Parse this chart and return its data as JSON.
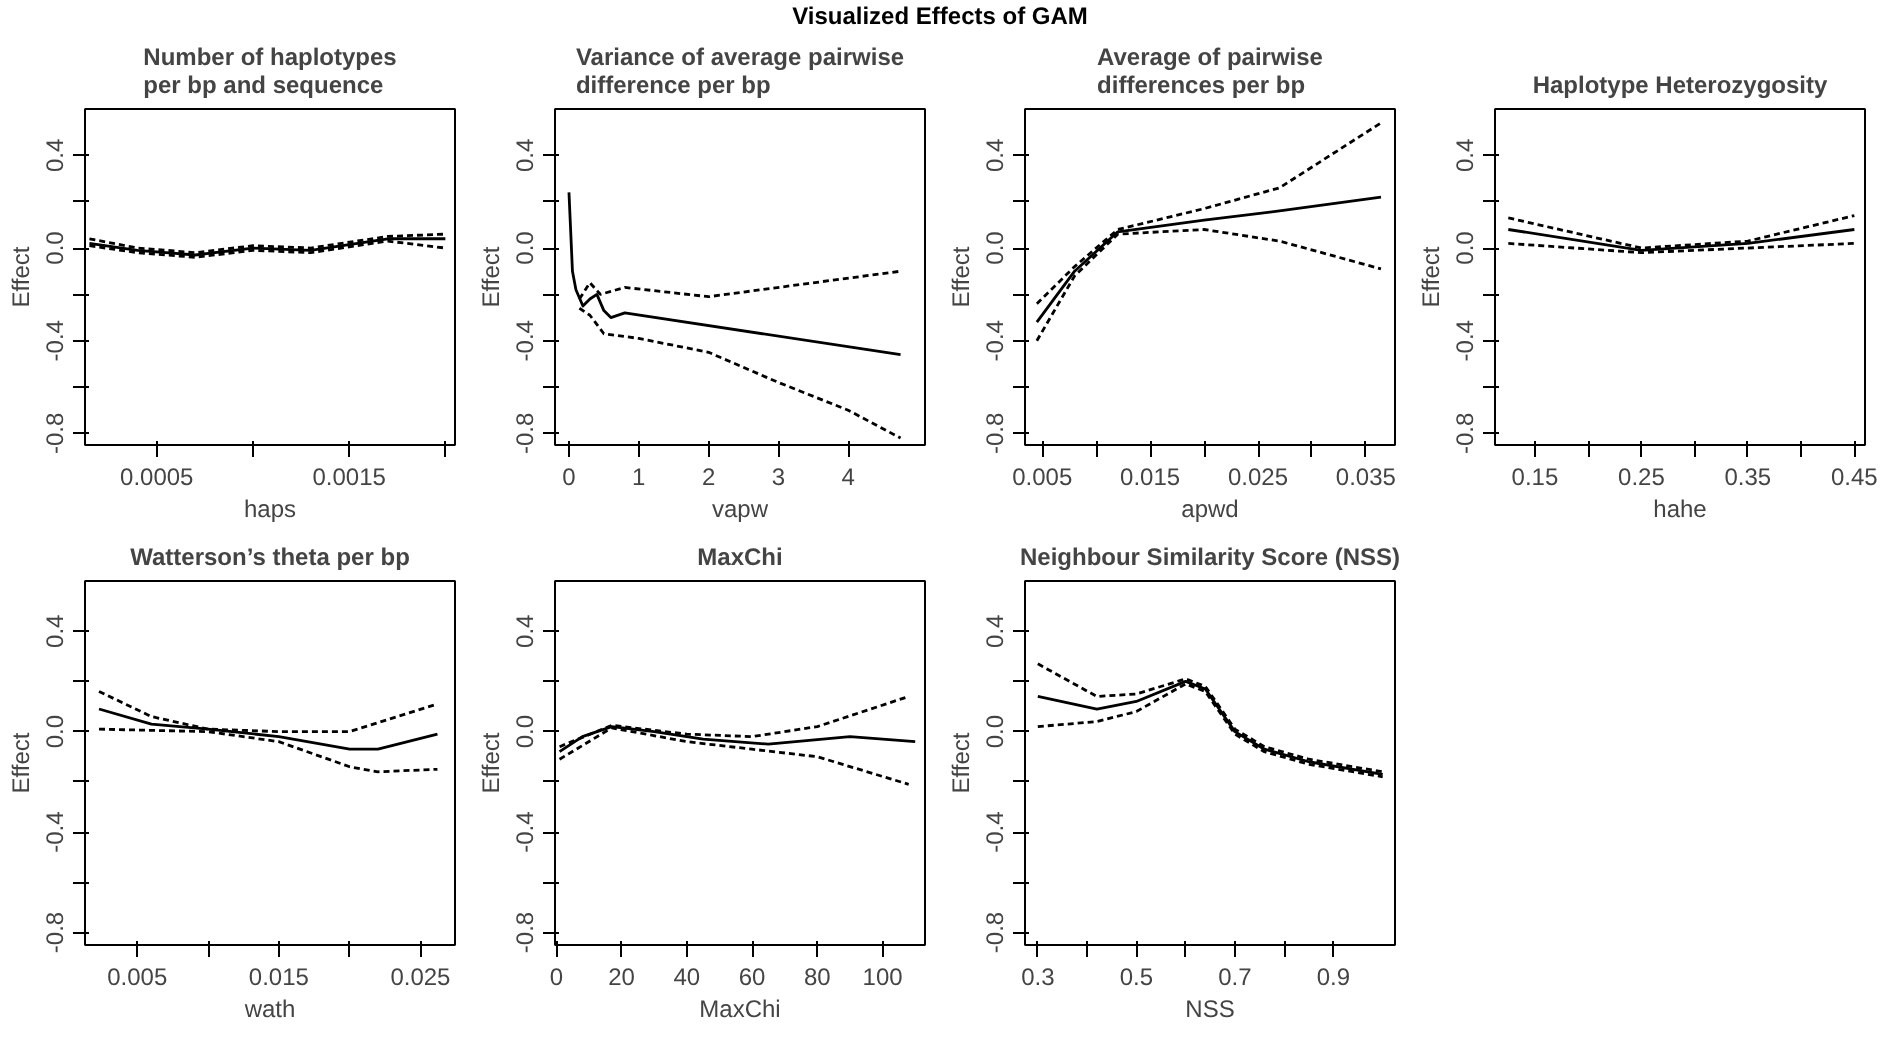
{
  "chart_data": [
    {
      "type": "line",
      "title": "Number of haplotypes\nper bp and sequence",
      "xlabel": "haps",
      "ylabel": "Effect",
      "annotations": [
        "Visualized Effects of GAM"
      ],
      "xlim": [
        0.000127,
        0.00205
      ],
      "xticks": [
        0.0005,
        {
          "value": 0.001,
          "label": null
        },
        0.0015,
        {
          "value": 0.002,
          "label": null
        }
      ],
      "ylim": [
        -0.85,
        0.6
      ],
      "yticks": [
        -0.8,
        {
          "value": -0.6,
          "label": null
        },
        -0.4,
        {
          "value": -0.2,
          "label": null
        },
        {
          "value": 0,
          "label": "0.0"
        },
        {
          "value": 0.2,
          "label": null
        },
        0.4
      ],
      "series": [
        {
          "x": [
            0.00015,
            0.0004,
            0.0007,
            0.001,
            0.0013,
            0.0017,
            0.002
          ],
          "values": [
            0.02,
            -0.01,
            -0.03,
            0.0,
            -0.01,
            0.04,
            0.04
          ],
          "color": "#000000",
          "line_style": "solid"
        },
        {
          "x": [
            0.00015,
            0.0004,
            0.0007,
            0.001,
            0.0013,
            0.0017,
            0.002
          ],
          "values": [
            0.04,
            0.0,
            -0.02,
            0.01,
            0.0,
            0.05,
            0.06
          ],
          "color": "#000000",
          "line_style": "dashed"
        },
        {
          "x": [
            0.00015,
            0.0004,
            0.0007,
            0.001,
            0.0013,
            0.0017,
            0.002
          ],
          "values": [
            0.01,
            -0.02,
            -0.04,
            -0.01,
            -0.02,
            0.03,
            0.0
          ],
          "color": "#000000",
          "line_style": "dashed"
        }
      ]
    },
    {
      "type": "line",
      "title": "Variance of average pairwise\ndifference per bp",
      "xlabel": "vapw",
      "ylabel": "Effect",
      "xlim": [
        -0.2,
        5.1
      ],
      "xticks": [
        0,
        1,
        2,
        3,
        4
      ],
      "ylim": [
        -0.85,
        0.6
      ],
      "yticks": [
        -0.8,
        {
          "value": -0.6,
          "label": null
        },
        -0.4,
        {
          "value": -0.2,
          "label": null
        },
        {
          "value": 0,
          "label": "0.0"
        },
        {
          "value": 0.2,
          "label": null
        },
        0.4
      ],
      "series": [
        {
          "x": [
            0,
            0.05,
            0.1,
            0.2,
            0.3,
            0.4,
            0.5,
            0.6,
            0.8,
            4.75
          ],
          "values": [
            0.24,
            -0.1,
            -0.18,
            -0.25,
            -0.22,
            -0.2,
            -0.27,
            -0.3,
            -0.28,
            -0.46
          ],
          "color": "#000000",
          "line_style": "solid"
        },
        {
          "x": [
            0.15,
            0.3,
            0.45,
            0.8,
            2,
            4.75
          ],
          "values": [
            -0.22,
            -0.15,
            -0.2,
            -0.17,
            -0.21,
            -0.1
          ],
          "color": "#000000",
          "line_style": "dashed"
        },
        {
          "x": [
            0.15,
            0.3,
            0.5,
            1,
            2,
            3,
            4,
            4.75
          ],
          "values": [
            -0.26,
            -0.29,
            -0.37,
            -0.39,
            -0.45,
            -0.58,
            -0.7,
            -0.82
          ],
          "color": "#000000",
          "line_style": "dashed"
        }
      ]
    },
    {
      "type": "line",
      "title": "Average of pairwise\ndifferences per bp",
      "xlabel": "apwd",
      "ylabel": "Effect",
      "xlim": [
        0.0034,
        0.0377
      ],
      "xticks": [
        0.005,
        {
          "value": 0.01,
          "label": null
        },
        0.015,
        {
          "value": 0.02,
          "label": null
        },
        0.025,
        {
          "value": 0.03,
          "label": null
        },
        0.035
      ],
      "ylim": [
        -0.85,
        0.6
      ],
      "yticks": [
        -0.8,
        {
          "value": -0.6,
          "label": null
        },
        -0.4,
        {
          "value": -0.2,
          "label": null
        },
        {
          "value": 0,
          "label": "0.0"
        },
        {
          "value": 0.2,
          "label": null
        },
        0.4
      ],
      "series": [
        {
          "x": [
            0.0045,
            0.008,
            0.012,
            0.02,
            0.027,
            0.0364
          ],
          "values": [
            -0.32,
            -0.1,
            0.07,
            0.12,
            0.16,
            0.22
          ],
          "color": "#000000",
          "line_style": "solid"
        },
        {
          "x": [
            0.0045,
            0.008,
            0.012,
            0.02,
            0.027,
            0.0364
          ],
          "values": [
            -0.24,
            -0.08,
            0.08,
            0.17,
            0.26,
            0.54
          ],
          "color": "#000000",
          "line_style": "dashed"
        },
        {
          "x": [
            0.0045,
            0.008,
            0.012,
            0.02,
            0.027,
            0.0364
          ],
          "values": [
            -0.4,
            -0.12,
            0.06,
            0.08,
            0.03,
            -0.09
          ],
          "color": "#000000",
          "line_style": "dashed"
        }
      ]
    },
    {
      "type": "line",
      "title": "Haplotype Heterozygosity",
      "xlabel": "hahe",
      "ylabel": "Effect",
      "xlim": [
        0.1125,
        0.46
      ],
      "xticks": [
        0.15,
        {
          "value": 0.2,
          "label": null
        },
        0.25,
        {
          "value": 0.3,
          "label": null
        },
        0.35,
        {
          "value": 0.4,
          "label": null
        },
        0.45
      ],
      "ylim": [
        -0.85,
        0.6
      ],
      "yticks": [
        -0.8,
        {
          "value": -0.6,
          "label": null
        },
        -0.4,
        {
          "value": -0.2,
          "label": null
        },
        {
          "value": 0,
          "label": "0.0"
        },
        {
          "value": 0.2,
          "label": null
        },
        0.4
      ],
      "series": [
        {
          "x": [
            0.125,
            0.25,
            0.35,
            0.45
          ],
          "values": [
            0.08,
            -0.01,
            0.02,
            0.08
          ],
          "color": "#000000",
          "line_style": "solid"
        },
        {
          "x": [
            0.125,
            0.25,
            0.35,
            0.45
          ],
          "values": [
            0.13,
            0.0,
            0.03,
            0.14
          ],
          "color": "#000000",
          "line_style": "dashed"
        },
        {
          "x": [
            0.125,
            0.25,
            0.35,
            0.45
          ],
          "values": [
            0.02,
            -0.02,
            0.0,
            0.02
          ],
          "color": "#000000",
          "line_style": "dashed"
        }
      ]
    },
    {
      "type": "line",
      "title": "Watterson’s theta per bp",
      "xlabel": "wath",
      "ylabel": "Effect",
      "xlim": [
        0.00131,
        0.02744
      ],
      "xticks": [
        0.005,
        {
          "value": 0.01,
          "label": null
        },
        0.015,
        {
          "value": 0.02,
          "label": null
        },
        0.025
      ],
      "ylim": [
        -0.85,
        0.6
      ],
      "yticks": [
        -0.8,
        {
          "value": -0.6,
          "label": null
        },
        -0.4,
        {
          "value": -0.2,
          "label": null
        },
        {
          "value": 0,
          "label": "0.0"
        },
        {
          "value": 0.2,
          "label": null
        },
        0.4
      ],
      "series": [
        {
          "x": [
            0.0023,
            0.006,
            0.01,
            0.015,
            0.02,
            0.022,
            0.0262
          ],
          "values": [
            0.09,
            0.03,
            0.01,
            -0.02,
            -0.07,
            -0.07,
            -0.01
          ],
          "color": "#000000",
          "line_style": "solid"
        },
        {
          "x": [
            0.0023,
            0.006,
            0.01,
            0.015,
            0.02,
            0.0262
          ],
          "values": [
            0.16,
            0.06,
            0.01,
            0.0,
            0.0,
            0.11
          ],
          "color": "#000000",
          "line_style": "dashed"
        },
        {
          "x": [
            0.0023,
            0.006,
            0.01,
            0.015,
            0.02,
            0.022,
            0.0262
          ],
          "values": [
            0.01,
            0.005,
            0.0,
            -0.04,
            -0.14,
            -0.16,
            -0.15
          ],
          "color": "#000000",
          "line_style": "dashed"
        }
      ]
    },
    {
      "type": "line",
      "title": "MaxChi",
      "xlabel": "MaxChi",
      "ylabel": "Effect",
      "xlim": [
        -0.4,
        113
      ],
      "xticks": [
        0,
        20,
        40,
        60,
        80,
        100
      ],
      "ylim": [
        -0.85,
        0.6
      ],
      "yticks": [
        -0.8,
        {
          "value": -0.6,
          "label": null
        },
        -0.4,
        {
          "value": -0.2,
          "label": null
        },
        {
          "value": 0,
          "label": "0.0"
        },
        {
          "value": 0.2,
          "label": null
        },
        0.4
      ],
      "series": [
        {
          "x": [
            1,
            8,
            17,
            30,
            45,
            65,
            90,
            110
          ],
          "values": [
            -0.08,
            -0.02,
            0.02,
            0.0,
            -0.03,
            -0.05,
            -0.02,
            -0.04
          ],
          "color": "#000000",
          "line_style": "solid"
        },
        {
          "x": [
            1,
            17,
            40,
            60,
            80,
            108
          ],
          "values": [
            -0.06,
            0.025,
            -0.01,
            -0.02,
            0.02,
            0.14
          ],
          "color": "#000000",
          "line_style": "dashed"
        },
        {
          "x": [
            1,
            17,
            40,
            60,
            80,
            108
          ],
          "values": [
            -0.11,
            0.015,
            -0.04,
            -0.07,
            -0.1,
            -0.21
          ],
          "color": "#000000",
          "line_style": "dashed"
        }
      ]
    },
    {
      "type": "line",
      "title": "Neighbour Similarity Score (NSS)",
      "xlabel": "NSS",
      "ylabel": "Effect",
      "xlim": [
        0.274,
        1.025
      ],
      "xticks": [
        0.3,
        {
          "value": 0.4,
          "label": null
        },
        0.5,
        {
          "value": 0.6,
          "label": null
        },
        0.7,
        {
          "value": 0.8,
          "label": null
        },
        0.9
      ],
      "ylim": [
        -0.85,
        0.6
      ],
      "yticks": [
        -0.8,
        {
          "value": -0.6,
          "label": null
        },
        -0.4,
        {
          "value": -0.2,
          "label": null
        },
        {
          "value": 0,
          "label": "0.0"
        },
        {
          "value": 0.2,
          "label": null
        },
        0.4
      ],
      "series": [
        {
          "x": [
            0.3,
            0.42,
            0.5,
            0.6,
            0.64,
            0.7,
            0.76,
            0.85,
            1.0
          ],
          "values": [
            0.14,
            0.09,
            0.12,
            0.2,
            0.17,
            0.0,
            -0.07,
            -0.12,
            -0.17
          ],
          "color": "#000000",
          "line_style": "solid"
        },
        {
          "x": [
            0.3,
            0.42,
            0.5,
            0.6,
            0.64,
            0.7,
            0.76,
            0.85,
            1.0
          ],
          "values": [
            0.27,
            0.14,
            0.15,
            0.21,
            0.18,
            0.01,
            -0.06,
            -0.11,
            -0.16
          ],
          "color": "#000000",
          "line_style": "dashed"
        },
        {
          "x": [
            0.3,
            0.42,
            0.5,
            0.6,
            0.64,
            0.7,
            0.76,
            0.85,
            1.0
          ],
          "values": [
            0.02,
            0.04,
            0.08,
            0.19,
            0.16,
            -0.01,
            -0.08,
            -0.13,
            -0.18
          ],
          "color": "#000000",
          "line_style": "dashed"
        }
      ]
    }
  ]
}
